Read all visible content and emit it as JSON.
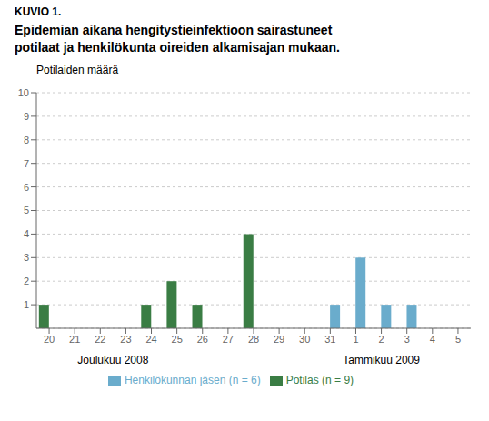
{
  "chart_data": {
    "type": "bar",
    "title": "KUVIO 1.",
    "subtitle": "Epidemian aikana hengitystieinfektioon sairastuneet\npotilaat ja henkilökunta oireiden alkamisajan mukaan.",
    "y_label": "Potilaiden määrä",
    "annotations": [
      "Joulukuu 2008",
      "Tammikuu 2009"
    ],
    "categories": [
      "20",
      "21",
      "22",
      "23",
      "24",
      "25",
      "26",
      "27",
      "28",
      "29",
      "30",
      "31",
      "1",
      "2",
      "3",
      "4",
      "5"
    ],
    "series": [
      {
        "name": "Potilas (n = 9)",
        "color": "#3a7d44",
        "values": [
          1,
          null,
          null,
          null,
          1,
          2,
          1,
          null,
          4,
          null,
          null,
          null,
          null,
          null,
          null,
          null,
          null
        ]
      },
      {
        "name": "Henkilökunnan jäsen (n = 6)",
        "color": "#6aaccc",
        "values": [
          null,
          null,
          null,
          null,
          null,
          null,
          null,
          null,
          null,
          null,
          null,
          1,
          3,
          1,
          1,
          null,
          null
        ]
      }
    ],
    "ylim": [
      0,
      10
    ],
    "yticks": [
      1,
      2,
      3,
      4,
      5,
      6,
      7,
      8,
      9,
      10
    ],
    "grid": true,
    "legend": "bottom"
  }
}
